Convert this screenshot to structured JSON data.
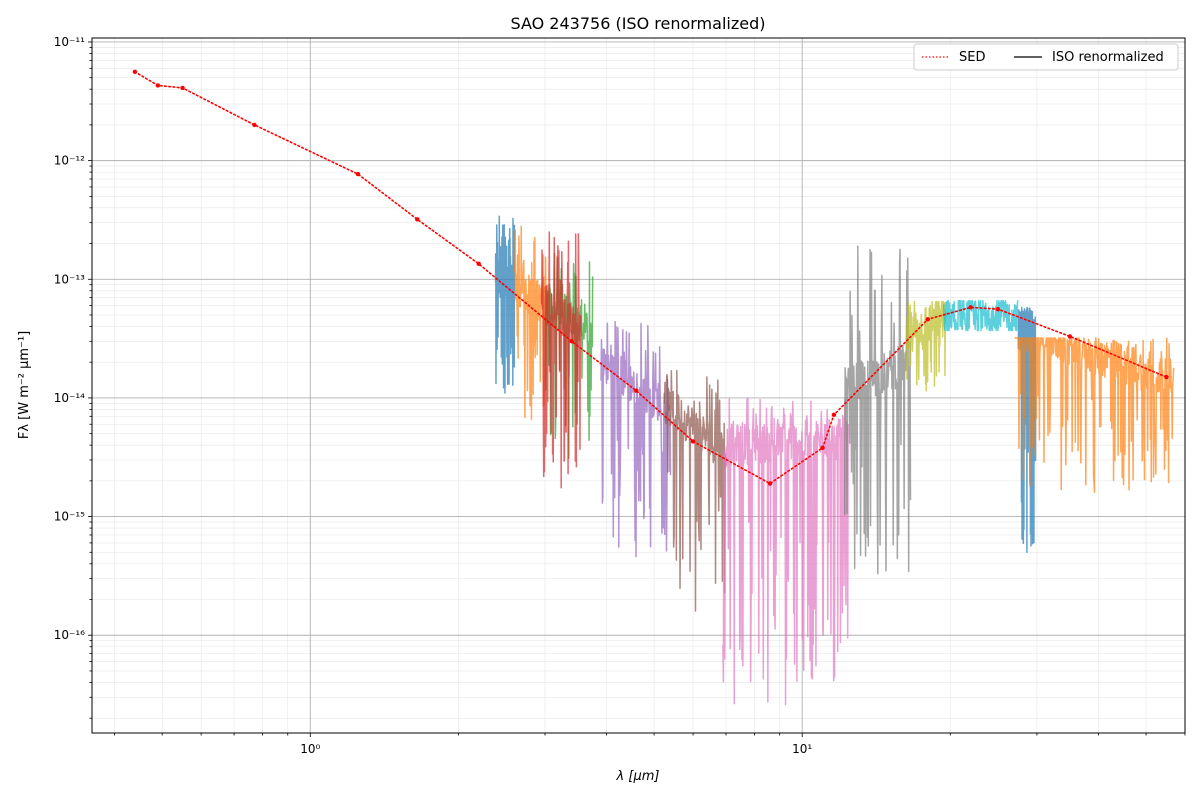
{
  "chart_data": {
    "type": "line",
    "title": "SAO 243756 (ISO renormalized)",
    "xlabel": "λ [μm]",
    "ylabel": "Fλ [W m⁻² μm⁻¹]",
    "xscale": "log",
    "yscale": "log",
    "xlim": [
      0.36,
      60
    ],
    "ylim": [
      1.5e-17,
      1.08e-11
    ],
    "x_ticks": [
      {
        "value": 1,
        "label": "10⁰"
      },
      {
        "value": 10,
        "label": "10¹"
      }
    ],
    "y_ticks": [
      {
        "value": 1e-16,
        "label": "10⁻¹⁶"
      },
      {
        "value": 1e-15,
        "label": "10⁻¹⁵"
      },
      {
        "value": 1e-14,
        "label": "10⁻¹⁴"
      },
      {
        "value": 1e-13,
        "label": "10⁻¹³"
      },
      {
        "value": 1e-12,
        "label": "10⁻¹²"
      },
      {
        "value": 1e-11,
        "label": "10⁻¹¹"
      }
    ],
    "grid": true,
    "legend_position": "top-right",
    "legend": [
      {
        "label": "SED",
        "style": "dotted",
        "color": "#ff0000"
      },
      {
        "label": "ISO renormalized",
        "style": "solid",
        "color": "#000000"
      }
    ],
    "sed": {
      "x": [
        0.44,
        0.49,
        0.55,
        0.77,
        1.25,
        1.65,
        2.2,
        3.4,
        4.6,
        6.0,
        8.6,
        11.0,
        11.6,
        18.0,
        22.0,
        25.0,
        35.0,
        55.0
      ],
      "y": [
        5.6e-12,
        4.3e-12,
        4.1e-12,
        2e-12,
        7.7e-13,
        3.2e-13,
        1.35e-13,
        3e-14,
        1.15e-14,
        4.3e-15,
        1.9e-15,
        3.8e-15,
        7.2e-15,
        4.6e-14,
        5.8e-14,
        5.6e-14,
        3.3e-14,
        1.5e-14
      ]
    },
    "iso_series": [
      {
        "color": "#1f77b4",
        "xmin": 2.38,
        "xmax": 2.6,
        "ymin": 1.1e-14,
        "ymax": 3.4e-13,
        "trend": [
          1.1e-13,
          9e-14
        ]
      },
      {
        "color": "#ff7f0e",
        "xmin": 2.6,
        "xmax": 3.05,
        "ymin": 6.6e-15,
        "ymax": 2.8e-13,
        "trend": [
          8.5e-14,
          6e-14
        ]
      },
      {
        "color": "#2ca02c",
        "xmin": 3.0,
        "xmax": 3.75,
        "ymin": 3.1e-15,
        "ymax": 1.65e-13,
        "trend": [
          6.5e-14,
          3.5e-14
        ]
      },
      {
        "color": "#d62728",
        "xmin": 2.95,
        "xmax": 3.55,
        "ymin": 1.75e-15,
        "ymax": 2.5e-13,
        "trend": [
          7.5e-14,
          3.5e-14
        ]
      },
      {
        "color": "#9467bd",
        "xmin": 3.9,
        "xmax": 5.4,
        "ymin": 4.6e-16,
        "ymax": 4.4e-14,
        "trend": [
          2e-14,
          8e-15
        ]
      },
      {
        "color": "#8c564b",
        "xmin": 5.25,
        "xmax": 7.0,
        "ymin": 1.6e-16,
        "ymax": 1.7e-14,
        "trend": [
          9e-15,
          3.5e-15
        ]
      },
      {
        "color": "#e377c2",
        "xmin": 6.9,
        "xmax": 12.4,
        "ymin": 2.6e-17,
        "ymax": 1e-14,
        "trend": [
          4e-15,
          4.5e-15
        ]
      },
      {
        "color": "#7f7f7f",
        "xmin": 12.2,
        "xmax": 16.6,
        "ymin": 3.3e-16,
        "ymax": 1.9e-13,
        "trend": [
          1.2e-14,
          2e-14
        ]
      },
      {
        "color": "#bcbd22",
        "xmin": 16.3,
        "xmax": 19.6,
        "ymin": 1.15e-14,
        "ymax": 6.5e-14,
        "trend": [
          3.5e-14,
          5e-14
        ]
      },
      {
        "color": "#17becf",
        "xmin": 19.4,
        "xmax": 27.5,
        "ymin": 3.7e-14,
        "ymax": 6.6e-14,
        "trend": [
          5.2e-14,
          4.8e-14
        ]
      },
      {
        "color": "#1f77b4",
        "xmin": 27.5,
        "xmax": 29.8,
        "ymin": 5e-16,
        "ymax": 5.8e-14,
        "trend": [
          3.8e-14,
          3.3e-14
        ]
      },
      {
        "color": "#ff7f0e",
        "xmin": 27.0,
        "xmax": 57.0,
        "ymin": 1.6e-15,
        "ymax": 3.2e-14,
        "trend": [
          3.9e-14,
          1.4e-14
        ]
      }
    ]
  }
}
